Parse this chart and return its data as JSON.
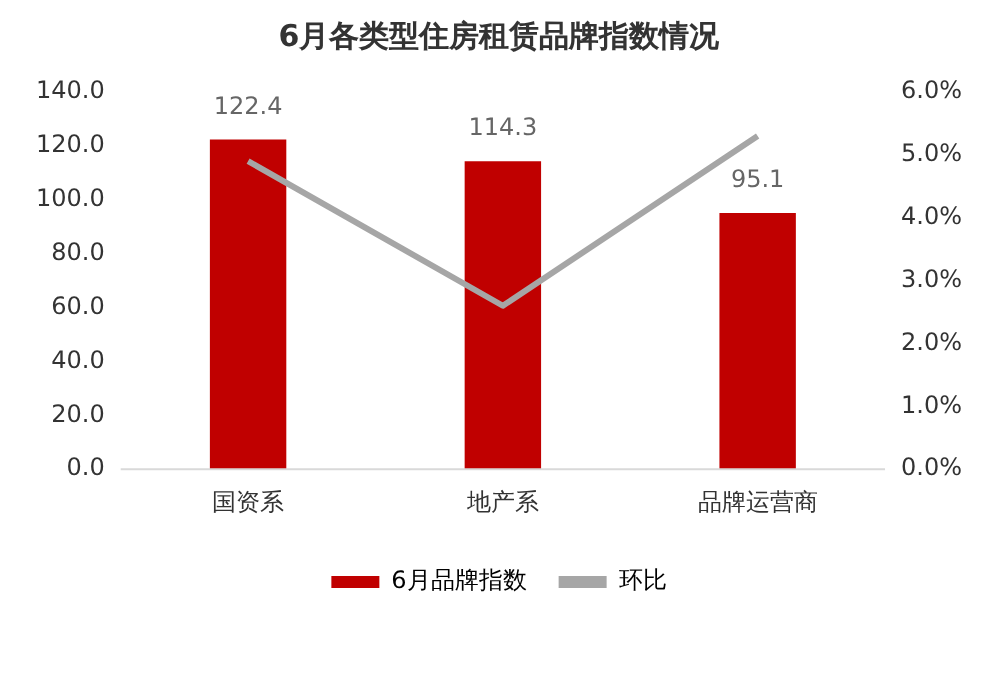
{
  "chart_data": {
    "type": "bar",
    "title": "6月各类型住房租赁品牌指数情况",
    "categories": [
      "国资系",
      "地产系",
      "品牌运营商"
    ],
    "series": [
      {
        "name": "6月品牌指数",
        "color": "#c00000",
        "values": [
          122.4,
          114.3,
          95.1
        ],
        "value_labels": [
          "122.4",
          "114.3",
          "95.1"
        ]
      },
      {
        "name": "环比",
        "type": "line",
        "axis": "y2",
        "color": "#a6a6a6",
        "values": [
          4.9,
          2.6,
          5.3
        ]
      }
    ],
    "ylim": [
      0,
      140
    ],
    "yticks": [
      {
        "value": 0,
        "label": "0.0"
      },
      {
        "value": 20,
        "label": "20.0"
      },
      {
        "value": 40,
        "label": "40.0"
      },
      {
        "value": 60,
        "label": "60.0"
      },
      {
        "value": 80,
        "label": "80.0"
      },
      {
        "value": 100,
        "label": "100.0"
      },
      {
        "value": 120,
        "label": "120.0"
      },
      {
        "value": 140,
        "label": "140.0"
      }
    ],
    "y2lim": [
      0,
      6
    ],
    "y2ticks": [
      {
        "value": 0,
        "label": "0.0%"
      },
      {
        "value": 1,
        "label": "1.0%"
      },
      {
        "value": 2,
        "label": "2.0%"
      },
      {
        "value": 3,
        "label": "3.0%"
      },
      {
        "value": 4,
        "label": "4.0%"
      },
      {
        "value": 5,
        "label": "5.0%"
      },
      {
        "value": 6,
        "label": "6.0%"
      }
    ],
    "grid": false,
    "legend": "bottom",
    "marker": "none"
  }
}
